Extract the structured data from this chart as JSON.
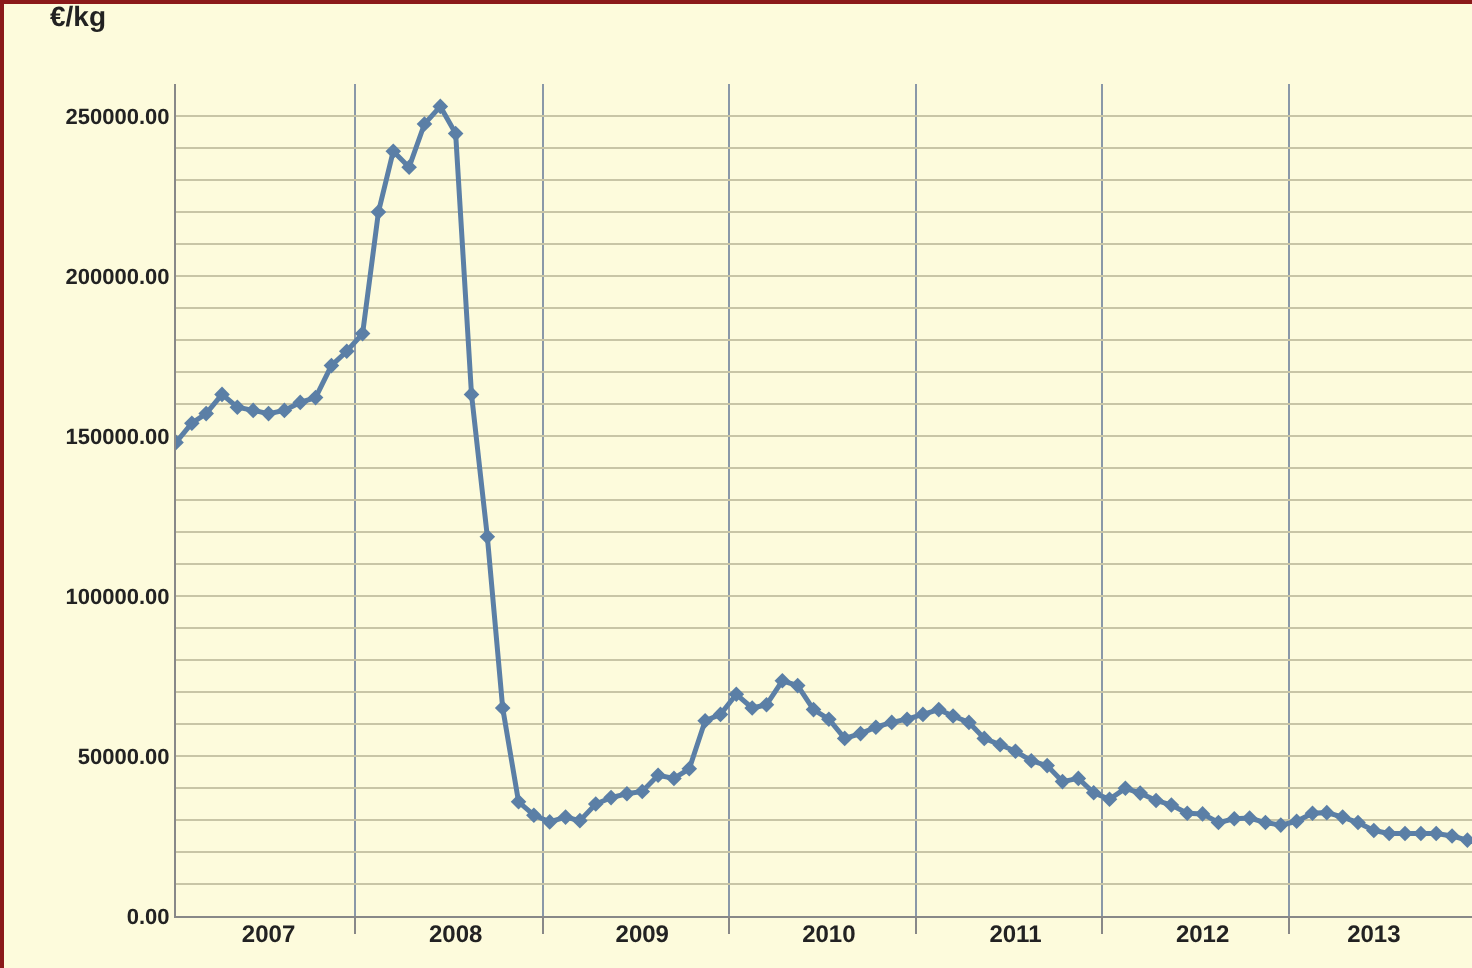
{
  "chart_data": {
    "type": "line",
    "ylabel": "€/kg",
    "x": [
      "2007-01",
      "2007-02",
      "2007-03",
      "2007-04",
      "2007-05",
      "2007-06",
      "2007-07",
      "2007-08",
      "2007-09",
      "2007-10",
      "2007-11",
      "2007-12",
      "2008-01",
      "2008-02",
      "2008-03",
      "2008-04",
      "2008-05",
      "2008-06",
      "2008-07",
      "2008-08",
      "2008-09",
      "2008-10",
      "2008-11",
      "2008-12",
      "2009-01",
      "2009-02",
      "2009-03",
      "2009-04",
      "2009-05",
      "2009-06",
      "2009-07",
      "2009-08",
      "2009-09",
      "2009-10",
      "2009-11",
      "2009-12",
      "2010-01",
      "2010-02",
      "2010-03",
      "2010-04",
      "2010-05",
      "2010-06",
      "2010-07",
      "2010-08",
      "2010-09",
      "2010-10",
      "2010-11",
      "2010-12",
      "2011-01",
      "2011-02",
      "2011-03",
      "2011-04",
      "2011-05",
      "2011-06",
      "2011-07",
      "2011-08",
      "2011-09",
      "2011-10",
      "2011-11",
      "2011-12",
      "2012-01",
      "2012-02",
      "2012-03",
      "2012-04",
      "2012-05",
      "2012-06",
      "2012-07",
      "2012-08",
      "2012-09",
      "2012-10",
      "2012-11",
      "2012-12",
      "2013-01",
      "2013-02",
      "2013-03",
      "2013-04",
      "2013-05",
      "2013-06",
      "2013-07",
      "2013-08",
      "2013-09",
      "2013-10",
      "2013-11",
      "2013-12"
    ],
    "series": [
      {
        "color": "#5b7fa6",
        "values": [
          148000,
          154000,
          157000,
          163000,
          159000,
          158000,
          157000,
          158000,
          160500,
          162000,
          172000,
          176500,
          182000,
          220000,
          239000,
          234000,
          247500,
          253000,
          244500,
          163000,
          118500,
          65000,
          35700,
          31500,
          29400,
          30900,
          29800,
          35000,
          37000,
          38200,
          38900,
          44000,
          43000,
          46000,
          61000,
          63000,
          69300,
          65000,
          66000,
          73500,
          72000,
          64500,
          61500,
          55500,
          57000,
          59000,
          60500,
          61500,
          63000,
          64500,
          62500,
          60500,
          55500,
          53500,
          51500,
          48500,
          47000,
          42000,
          43000,
          38500,
          36500,
          39900,
          38400,
          36100,
          34700,
          32100,
          31900,
          29200,
          30400,
          30600,
          29200,
          28400,
          29600,
          32100,
          32300,
          30900,
          29200,
          26700,
          25800,
          25800,
          25800,
          25800,
          25000,
          23700
        ]
      }
    ],
    "xlim": [
      "2007-01-01",
      "2013-12-10"
    ],
    "xticks": [
      {
        "value": "2007-12-18",
        "label": null
      },
      {
        "value": "2008-12-18",
        "label": null
      },
      {
        "value": "2009-12-18",
        "label": null
      },
      {
        "value": "2010-12-18",
        "label": null
      },
      {
        "value": "2011-12-18",
        "label": null
      },
      {
        "value": "2012-12-18",
        "label": null
      },
      {
        "value": "2007-07-01",
        "label": "2007"
      },
      {
        "value": "2008-07-01",
        "label": "2008"
      },
      {
        "value": "2009-07-01",
        "label": "2009"
      },
      {
        "value": "2010-07-01",
        "label": "2010"
      },
      {
        "value": "2011-07-01",
        "label": "2011"
      },
      {
        "value": "2012-07-01",
        "label": "2012"
      },
      {
        "value": "2013-06-01",
        "label": "2013"
      }
    ],
    "ylim": [
      0,
      260000
    ],
    "yticks": [
      {
        "value": 0,
        "label": "0.00"
      },
      {
        "value": 10000,
        "label": null
      },
      {
        "value": 20000,
        "label": null
      },
      {
        "value": 30000,
        "label": null
      },
      {
        "value": 40000,
        "label": null
      },
      {
        "value": 50000,
        "label": "50000.00"
      },
      {
        "value": 60000,
        "label": null
      },
      {
        "value": 70000,
        "label": null
      },
      {
        "value": 80000,
        "label": null
      },
      {
        "value": 90000,
        "label": null
      },
      {
        "value": 100000,
        "label": "100000.00"
      },
      {
        "value": 110000,
        "label": null
      },
      {
        "value": 120000,
        "label": null
      },
      {
        "value": 130000,
        "label": null
      },
      {
        "value": 140000,
        "label": null
      },
      {
        "value": 150000,
        "label": "150000.00"
      },
      {
        "value": 160000,
        "label": null
      },
      {
        "value": 170000,
        "label": null
      },
      {
        "value": 180000,
        "label": null
      },
      {
        "value": 190000,
        "label": null
      },
      {
        "value": 200000,
        "label": "200000.00"
      },
      {
        "value": 210000,
        "label": null
      },
      {
        "value": 220000,
        "label": null
      },
      {
        "value": 230000,
        "label": null
      },
      {
        "value": 240000,
        "label": null
      },
      {
        "value": 250000,
        "label": "250000.00"
      }
    ],
    "grid": true,
    "marker": "diamond",
    "line_style": "solid"
  }
}
